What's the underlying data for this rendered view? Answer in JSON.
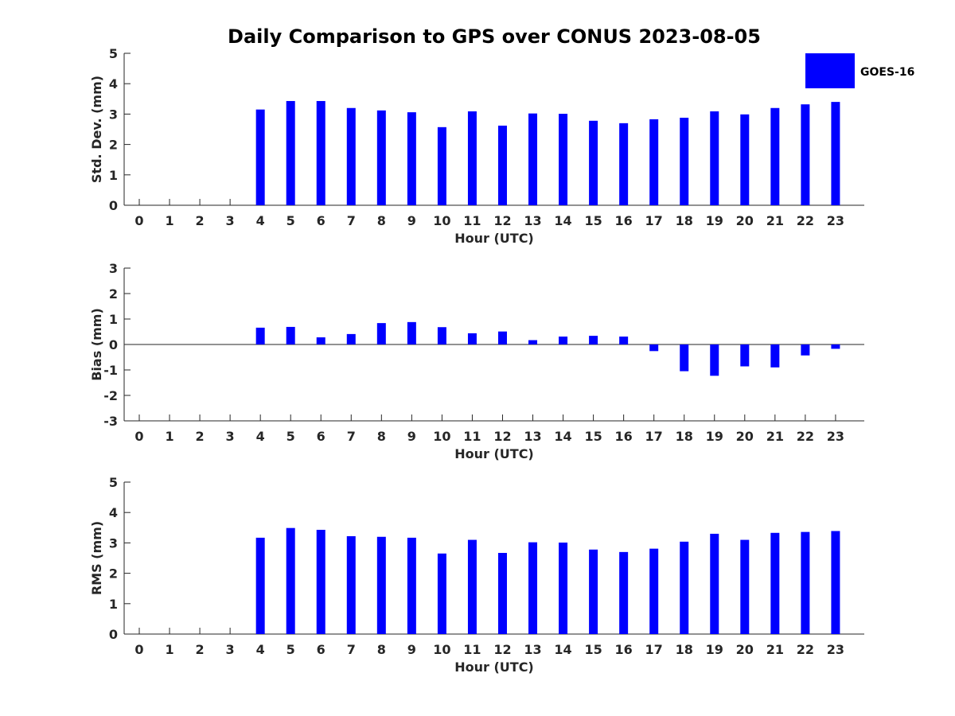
{
  "title": "Daily Comparison to GPS over CONUS 2023-08-05",
  "legend": {
    "label": "GOES-16",
    "color": "#0000ff"
  },
  "chart_data": [
    {
      "type": "bar",
      "xlabel": "Hour (UTC)",
      "ylabel": "Std. Dev. (mm)",
      "ylim": [
        0,
        5
      ],
      "yticks": [
        0,
        1,
        2,
        3,
        4,
        5
      ],
      "categories": [
        "0",
        "1",
        "2",
        "3",
        "4",
        "5",
        "6",
        "7",
        "8",
        "9",
        "10",
        "11",
        "12",
        "13",
        "14",
        "15",
        "16",
        "17",
        "18",
        "19",
        "20",
        "21",
        "22",
        "23"
      ],
      "series": [
        {
          "name": "GOES-16",
          "values": [
            null,
            null,
            null,
            null,
            3.15,
            3.43,
            3.43,
            3.2,
            3.12,
            3.06,
            2.57,
            3.09,
            2.62,
            3.02,
            3.01,
            2.78,
            2.7,
            2.83,
            2.88,
            3.09,
            2.99,
            3.2,
            3.32,
            3.4
          ]
        }
      ]
    },
    {
      "type": "bar",
      "xlabel": "Hour (UTC)",
      "ylabel": "Bias (mm)",
      "ylim": [
        -3,
        3
      ],
      "yticks": [
        -3,
        -2,
        -1,
        0,
        1,
        2,
        3
      ],
      "categories": [
        "0",
        "1",
        "2",
        "3",
        "4",
        "5",
        "6",
        "7",
        "8",
        "9",
        "10",
        "11",
        "12",
        "13",
        "14",
        "15",
        "16",
        "17",
        "18",
        "19",
        "20",
        "21",
        "22",
        "23"
      ],
      "series": [
        {
          "name": "GOES-16",
          "values": [
            null,
            null,
            null,
            null,
            0.66,
            0.69,
            0.28,
            0.41,
            0.84,
            0.88,
            0.68,
            0.44,
            0.51,
            0.17,
            0.31,
            0.34,
            0.31,
            -0.26,
            -1.05,
            -1.23,
            -0.86,
            -0.9,
            -0.43,
            -0.17
          ]
        }
      ]
    },
    {
      "type": "bar",
      "xlabel": "Hour (UTC)",
      "ylabel": "RMS (mm)",
      "ylim": [
        0,
        5
      ],
      "yticks": [
        0,
        1,
        2,
        3,
        4,
        5
      ],
      "categories": [
        "0",
        "1",
        "2",
        "3",
        "4",
        "5",
        "6",
        "7",
        "8",
        "9",
        "10",
        "11",
        "12",
        "13",
        "14",
        "15",
        "16",
        "17",
        "18",
        "19",
        "20",
        "21",
        "22",
        "23"
      ],
      "series": [
        {
          "name": "GOES-16",
          "values": [
            null,
            null,
            null,
            null,
            3.17,
            3.49,
            3.43,
            3.22,
            3.2,
            3.17,
            2.65,
            3.1,
            2.67,
            3.02,
            3.01,
            2.78,
            2.7,
            2.81,
            3.04,
            3.3,
            3.1,
            3.33,
            3.36,
            3.39
          ]
        }
      ]
    }
  ]
}
